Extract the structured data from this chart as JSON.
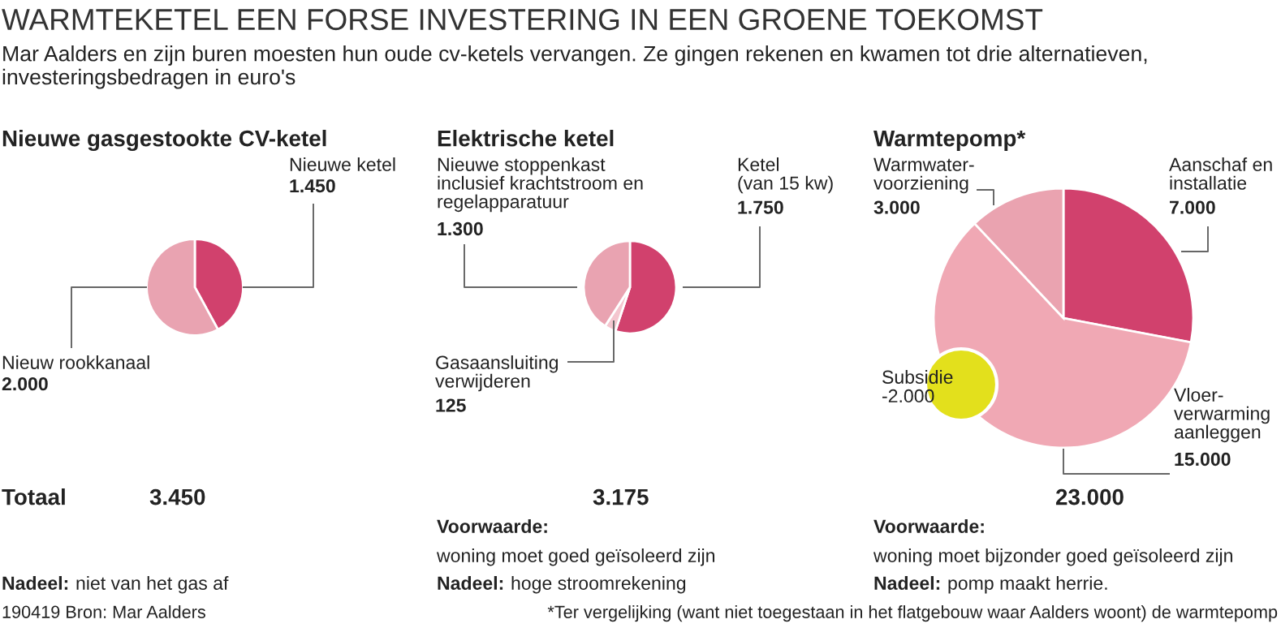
{
  "chart_data": [
    {
      "type": "other",
      "title": "WARMTEKETEL EEN FORSE INVESTERING IN EEN GROENE TOEKOMST",
      "subtitle": "Mar Aalders en zijn buren moesten hun oude cv-ketels vervangen. Ze gingen rekenen en kwamen tot drie alternatieven,\ninvesteringsbedragen in euro's",
      "annotations": [
        "Totaal",
        "190419 Bron: Mar Aalders",
        "*Ter vergelijking (want niet toegestaan in het flatgebouw waar Aalders woont) de warmtepomp"
      ]
    },
    {
      "type": "pie",
      "title": "Nieuwe gasgestookte CV-ketel",
      "categories": [
        "Nieuwe ketel",
        "Nieuw rookkanaal"
      ],
      "values": [
        1450,
        2000
      ],
      "colors": [
        "#d1416d",
        "#e9a3b1"
      ],
      "value_labels": [
        "1.450",
        "2.000"
      ],
      "annotations": [
        "3.450",
        "Nadeel:",
        "niet van het gas af"
      ]
    },
    {
      "type": "pie",
      "title": "Elektrische ketel",
      "categories": [
        "Ketel\n(van 15 kw)",
        "Gasaansluiting\nverwijderen",
        "Nieuwe stoppenkast\ninclusief krachtstroom en\nregelapparatuur"
      ],
      "values": [
        1750,
        125,
        1300
      ],
      "colors": [
        "#d1416d",
        "#f4c6cf",
        "#e9a3b1"
      ],
      "value_labels": [
        "1.750",
        "125",
        "1.300"
      ],
      "annotations": [
        "3.175",
        "Voorwaarde:",
        "woning moet goed geïsoleerd zijn",
        "Nadeel:",
        "hoge stroomrekening"
      ]
    },
    {
      "type": "pie",
      "title": "Warmtepomp*",
      "categories": [
        "Aanschaf en\ninstallatie",
        "Vloer-\nverwarming\naanleggen",
        "Warmwater-\nvoorziening"
      ],
      "values": [
        7000,
        15000,
        3000
      ],
      "colors": [
        "#d1416d",
        "#f0a8b4",
        "#eaa3b0"
      ],
      "value_labels": [
        "7.000",
        "15.000",
        "3.000"
      ],
      "annotations": [
        "23.000",
        "Subsidie\n-2.000",
        "Voorwaarde:",
        "woning moet bijzonder goed geïsoleerd zijn",
        "Nadeel:",
        "pomp maakt herrie."
      ]
    }
  ]
}
